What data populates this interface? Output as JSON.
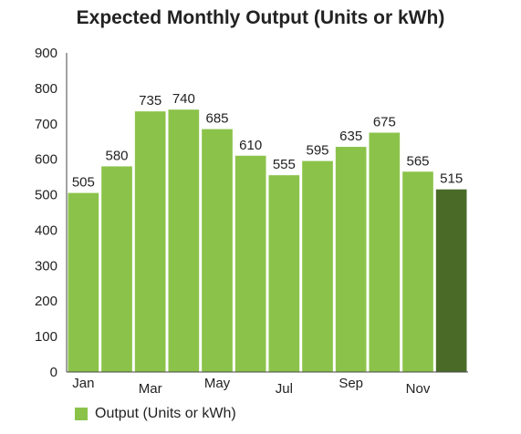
{
  "title": "Expected Monthly Output (Units or kWh)",
  "chart_data": {
    "type": "bar",
    "title": "Expected Monthly Output (Units or kWh)",
    "categories": [
      "Jan",
      "Feb",
      "Mar",
      "Apr",
      "May",
      "Jun",
      "Jul",
      "Aug",
      "Sep",
      "Oct",
      "Nov",
      "Dec"
    ],
    "tick_labels": [
      "Jan",
      "",
      "Mar",
      "",
      "May",
      "",
      "Jul",
      "",
      "Sep",
      "",
      "Nov",
      ""
    ],
    "series": [
      {
        "name": "Output (Units or kWh)",
        "values": [
          505,
          580,
          735,
          740,
          685,
          610,
          555,
          595,
          635,
          675,
          565,
          515
        ]
      }
    ],
    "ylim": [
      0,
      900
    ],
    "yticks": [
      0,
      100,
      200,
      300,
      400,
      500,
      600,
      700,
      800,
      900
    ],
    "grid": false,
    "legend": "bottom-left",
    "colors": {
      "bar": "#8bc34a",
      "highlight": "#4a6b28"
    },
    "highlight_index": 11
  },
  "legend": {
    "label": "Output (Units or kWh)"
  }
}
